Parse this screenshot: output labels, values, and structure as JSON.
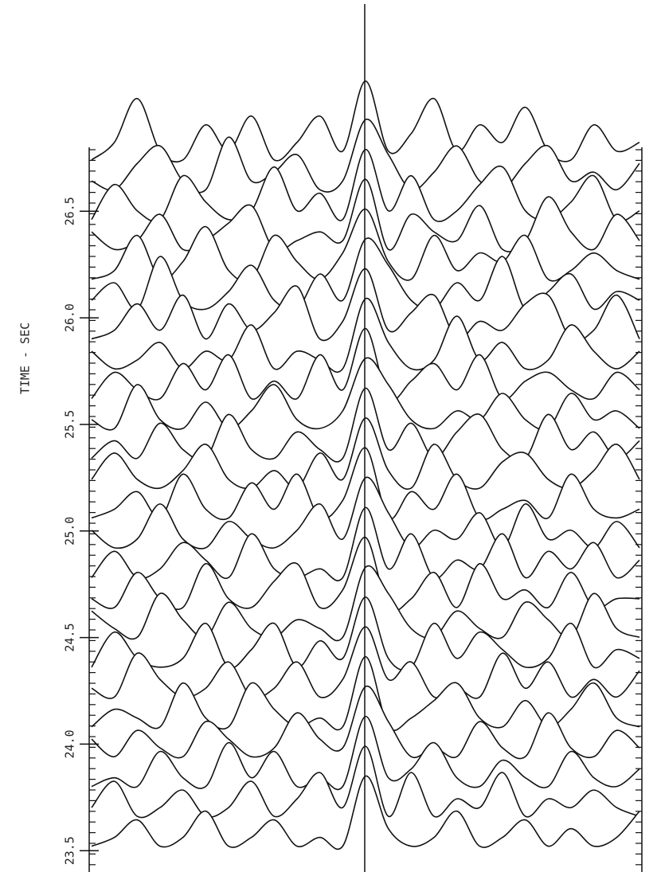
{
  "chart_data": {
    "type": "waterfall",
    "ylabel": "TIME - SEC",
    "ylim": [
      23.4,
      26.8
    ],
    "yticks": [
      {
        "value": 23.5,
        "label": "23.5"
      },
      {
        "value": 24,
        "label": "24.0"
      },
      {
        "value": 24.5,
        "label": "24.5"
      },
      {
        "value": 25,
        "label": "25.0"
      },
      {
        "value": 25.5,
        "label": "25.5"
      },
      {
        "value": 26,
        "label": "26.0"
      },
      {
        "value": 26.5,
        "label": "26.5"
      }
    ],
    "color": "#111111",
    "series": [
      {
        "y": 26.7,
        "values": [
          1,
          3,
          8,
          2,
          1,
          5,
          2,
          6,
          1,
          3,
          6,
          2,
          10,
          2,
          4,
          8,
          2,
          5,
          3,
          7,
          2,
          1,
          5,
          2,
          3
        ]
      },
      {
        "y": 26.56,
        "values": [
          2,
          1,
          4,
          6,
          2,
          1,
          7,
          2,
          3,
          5,
          1,
          2,
          9,
          5,
          1,
          3,
          6,
          2,
          1,
          4,
          6,
          2,
          3,
          1,
          4
        ]
      },
      {
        "y": 26.42,
        "values": [
          1,
          5,
          2,
          1,
          6,
          3,
          1,
          2,
          7,
          2,
          4,
          1,
          9,
          2,
          6,
          1,
          2,
          5,
          7,
          2,
          1,
          3,
          6,
          1,
          2
        ]
      },
      {
        "y": 26.28,
        "values": [
          3,
          1,
          2,
          5,
          1,
          2,
          4,
          6,
          1,
          2,
          3,
          2,
          9,
          1,
          5,
          3,
          2,
          6,
          1,
          2,
          7,
          3,
          1,
          5,
          2
        ]
      },
      {
        "y": 26.14,
        "values": [
          1,
          2,
          6,
          1,
          3,
          7,
          2,
          1,
          6,
          3,
          1,
          4,
          9,
          3,
          1,
          6,
          2,
          4,
          3,
          6,
          1,
          2,
          4,
          2,
          1
        ]
      },
      {
        "y": 26.0,
        "values": [
          2,
          4,
          1,
          7,
          2,
          1,
          3,
          6,
          2,
          1,
          5,
          2,
          9,
          6,
          2,
          1,
          4,
          2,
          7,
          1,
          3,
          5,
          1,
          3,
          2
        ]
      },
      {
        "y": 25.86,
        "values": [
          1,
          2,
          5,
          2,
          6,
          1,
          5,
          2,
          4,
          7,
          1,
          3,
          9,
          2,
          4,
          6,
          1,
          3,
          2,
          5,
          6,
          1,
          2,
          6,
          1
        ]
      },
      {
        "y": 25.72,
        "values": [
          3,
          1,
          2,
          4,
          1,
          3,
          2,
          6,
          1,
          3,
          2,
          1,
          9,
          4,
          1,
          2,
          7,
          2,
          4,
          1,
          2,
          6,
          3,
          1,
          3
        ]
      },
      {
        "y": 25.58,
        "values": [
          1,
          4,
          2,
          1,
          5,
          2,
          6,
          1,
          3,
          1,
          6,
          2,
          9,
          1,
          3,
          5,
          2,
          6,
          1,
          3,
          4,
          2,
          1,
          4,
          2
        ]
      },
      {
        "y": 25.44,
        "values": [
          2,
          1,
          6,
          2,
          1,
          4,
          1,
          3,
          6,
          2,
          1,
          3,
          9,
          6,
          2,
          1,
          3,
          2,
          5,
          2,
          1,
          5,
          2,
          3,
          1
        ]
      },
      {
        "y": 25.3,
        "values": [
          1,
          3,
          1,
          5,
          2,
          1,
          6,
          2,
          1,
          4,
          2,
          1,
          9,
          2,
          5,
          1,
          4,
          6,
          2,
          1,
          6,
          2,
          4,
          1,
          3
        ]
      },
      {
        "y": 25.16,
        "values": [
          2,
          5,
          2,
          1,
          3,
          6,
          2,
          1,
          3,
          1,
          5,
          2,
          9,
          3,
          1,
          6,
          2,
          1,
          4,
          5,
          2,
          1,
          3,
          6,
          2
        ]
      },
      {
        "y": 25.02,
        "values": [
          1,
          2,
          4,
          1,
          6,
          2,
          1,
          5,
          2,
          6,
          1,
          3,
          9,
          1,
          4,
          2,
          6,
          1,
          2,
          3,
          1,
          6,
          2,
          1,
          2
        ]
      },
      {
        "y": 24.88,
        "values": [
          3,
          1,
          2,
          6,
          2,
          1,
          4,
          2,
          1,
          3,
          6,
          2,
          9,
          5,
          1,
          3,
          2,
          5,
          1,
          6,
          2,
          3,
          1,
          4,
          1
        ]
      },
      {
        "y": 24.74,
        "values": [
          1,
          4,
          1,
          2,
          5,
          3,
          1,
          6,
          2,
          1,
          2,
          1,
          9,
          2,
          6,
          1,
          3,
          2,
          6,
          1,
          4,
          2,
          5,
          1,
          3
        ]
      },
      {
        "y": 24.6,
        "values": [
          2,
          1,
          5,
          2,
          1,
          6,
          2,
          1,
          4,
          6,
          1,
          3,
          9,
          1,
          2,
          5,
          1,
          6,
          2,
          3,
          1,
          5,
          1,
          2,
          2
        ]
      },
      {
        "y": 24.46,
        "values": [
          4,
          2,
          1,
          6,
          3,
          1,
          5,
          2,
          1,
          3,
          2,
          1,
          9,
          6,
          2,
          1,
          4,
          2,
          1,
          5,
          3,
          1,
          6,
          2,
          1
        ]
      },
      {
        "y": 24.32,
        "values": [
          1,
          5,
          2,
          1,
          2,
          6,
          1,
          3,
          6,
          1,
          4,
          2,
          9,
          2,
          1,
          6,
          2,
          5,
          3,
          1,
          2,
          6,
          1,
          3,
          2
        ]
      },
      {
        "y": 24.18,
        "values": [
          2,
          1,
          6,
          3,
          1,
          2,
          5,
          1,
          2,
          5,
          1,
          3,
          9,
          3,
          5,
          1,
          2,
          1,
          6,
          2,
          5,
          1,
          3,
          1,
          4
        ]
      },
      {
        "y": 24.04,
        "values": [
          1,
          3,
          2,
          1,
          6,
          2,
          1,
          6,
          3,
          1,
          2,
          1,
          9,
          1,
          2,
          4,
          6,
          2,
          1,
          4,
          1,
          3,
          6,
          2,
          1
        ]
      },
      {
        "y": 23.9,
        "values": [
          3,
          1,
          4,
          2,
          1,
          5,
          3,
          1,
          2,
          6,
          3,
          2,
          9,
          5,
          1,
          2,
          1,
          5,
          2,
          1,
          6,
          2,
          1,
          4,
          2
        ]
      },
      {
        "y": 23.76,
        "values": [
          1,
          2,
          1,
          5,
          2,
          1,
          6,
          2,
          5,
          1,
          2,
          1,
          9,
          2,
          3,
          6,
          2,
          1,
          4,
          2,
          1,
          5,
          2,
          1,
          3
        ]
      },
      {
        "y": 23.62,
        "values": [
          2,
          5,
          1,
          2,
          4,
          1,
          2,
          5,
          1,
          3,
          6,
          2,
          9,
          1,
          6,
          1,
          3,
          2,
          6,
          1,
          3,
          2,
          4,
          2,
          1
        ]
      },
      {
        "y": 23.48,
        "values": [
          1,
          2,
          4,
          1,
          2,
          5,
          1,
          2,
          4,
          1,
          2,
          1,
          9,
          3,
          1,
          2,
          5,
          1,
          2,
          4,
          1,
          3,
          1,
          2,
          5
        ]
      }
    ]
  }
}
